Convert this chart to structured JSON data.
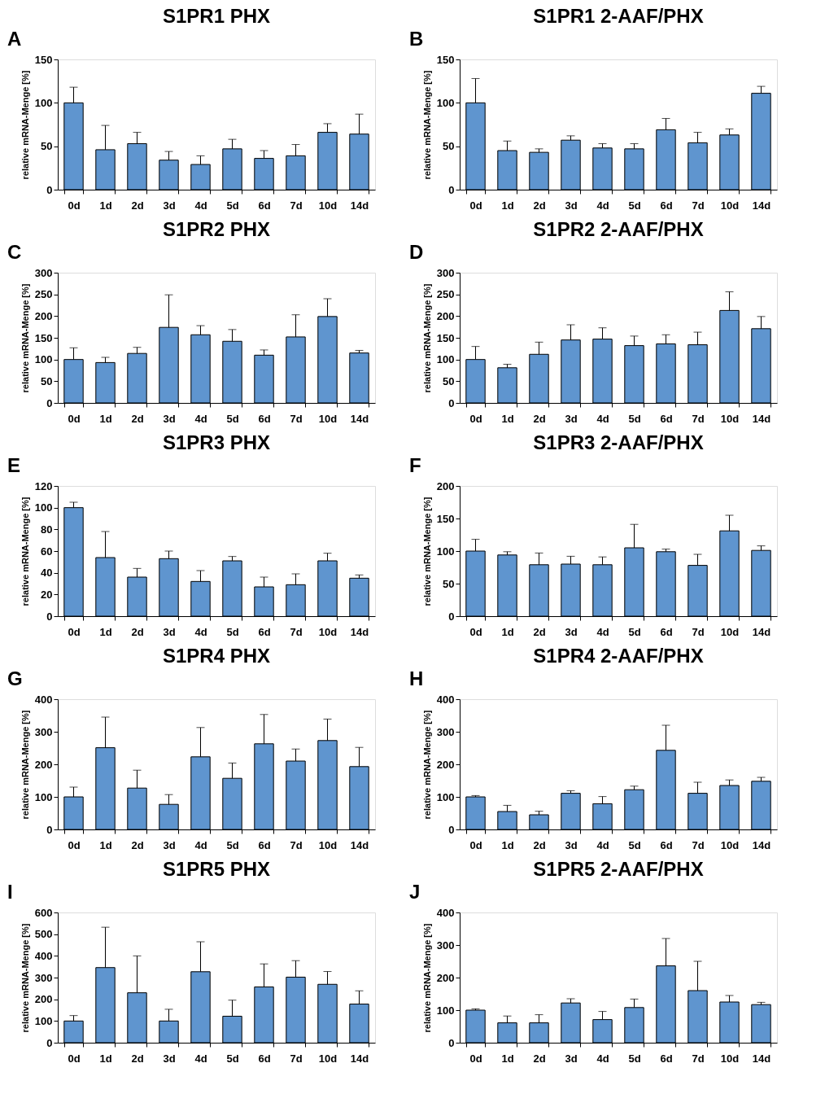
{
  "chart_data": [
    {
      "type": "bar",
      "title": "S1PR1 PHX",
      "ylabel": "relative mRNA-Menge [%]",
      "annotations": [
        "A"
      ],
      "color": "#5f95cf",
      "categories": [
        "0d",
        "1d",
        "2d",
        "3d",
        "4d",
        "5d",
        "6d",
        "7d",
        "10d",
        "14d"
      ],
      "values": [
        100,
        46,
        53,
        34,
        29,
        47,
        36,
        39,
        66,
        64
      ],
      "errors": [
        [
          100,
          118
        ],
        [
          46,
          74
        ],
        [
          53,
          66
        ],
        [
          34,
          44
        ],
        [
          29,
          39
        ],
        [
          47,
          58
        ],
        [
          36,
          45
        ],
        [
          39,
          52
        ],
        [
          66,
          76
        ],
        [
          64,
          87
        ]
      ],
      "ylim": [
        0,
        150
      ],
      "yticks": [
        0,
        50,
        100,
        150
      ]
    },
    {
      "type": "bar",
      "title": "S1PR1 2-AAF/PHX",
      "ylabel": "relative mRNA-Menge [%]",
      "annotations": [
        "B"
      ],
      "color": "#5f95cf",
      "categories": [
        "0d",
        "1d",
        "2d",
        "3d",
        "4d",
        "5d",
        "6d",
        "7d",
        "10d",
        "14d"
      ],
      "values": [
        100,
        45,
        43,
        57,
        48,
        47,
        69,
        54,
        63,
        111
      ],
      "errors": [
        [
          100,
          128
        ],
        [
          45,
          56
        ],
        [
          43,
          47
        ],
        [
          57,
          62
        ],
        [
          48,
          53
        ],
        [
          47,
          53
        ],
        [
          69,
          82
        ],
        [
          54,
          66
        ],
        [
          63,
          70
        ],
        [
          111,
          119
        ]
      ],
      "ylim": [
        0,
        150
      ],
      "yticks": [
        0,
        50,
        100,
        150
      ]
    },
    {
      "type": "bar",
      "title": "S1PR2 PHX",
      "ylabel": "relative mRNA-Menge [%]",
      "annotations": [
        "C"
      ],
      "color": "#5f95cf",
      "categories": [
        "0d",
        "1d",
        "2d",
        "3d",
        "4d",
        "5d",
        "6d",
        "7d",
        "10d",
        "14d"
      ],
      "values": [
        100,
        93,
        114,
        174,
        157,
        142,
        110,
        152,
        199,
        115
      ],
      "errors": [
        [
          100,
          127
        ],
        [
          93,
          105
        ],
        [
          114,
          128
        ],
        [
          174,
          249
        ],
        [
          157,
          178
        ],
        [
          142,
          169
        ],
        [
          110,
          122
        ],
        [
          152,
          203
        ],
        [
          199,
          240
        ],
        [
          115,
          121
        ]
      ],
      "ylim": [
        0,
        300
      ],
      "yticks": [
        0,
        50,
        100,
        150,
        200,
        250,
        300
      ]
    },
    {
      "type": "bar",
      "title": "S1PR2 2-AAF/PHX",
      "ylabel": "relative mRNA-Menge [%]",
      "annotations": [
        "D"
      ],
      "color": "#5f95cf",
      "categories": [
        "0d",
        "1d",
        "2d",
        "3d",
        "4d",
        "5d",
        "6d",
        "7d",
        "10d",
        "14d"
      ],
      "values": [
        100,
        81,
        112,
        145,
        147,
        132,
        136,
        134,
        213,
        171
      ],
      "errors": [
        [
          100,
          130
        ],
        [
          81,
          89
        ],
        [
          112,
          140
        ],
        [
          145,
          180
        ],
        [
          147,
          173
        ],
        [
          132,
          154
        ],
        [
          136,
          157
        ],
        [
          134,
          163
        ],
        [
          213,
          256
        ],
        [
          171,
          199
        ]
      ],
      "ylim": [
        0,
        300
      ],
      "yticks": [
        0,
        50,
        100,
        150,
        200,
        250,
        300
      ]
    },
    {
      "type": "bar",
      "title": "S1PR3 PHX",
      "ylabel": "relative mRNA-Menge [%]",
      "annotations": [
        "E"
      ],
      "color": "#5f95cf",
      "categories": [
        "0d",
        "1d",
        "2d",
        "3d",
        "4d",
        "5d",
        "6d",
        "7d",
        "10d",
        "14d"
      ],
      "values": [
        100,
        54,
        36,
        53,
        32,
        51,
        27,
        29,
        51,
        35
      ],
      "errors": [
        [
          100,
          105
        ],
        [
          54,
          78
        ],
        [
          36,
          44
        ],
        [
          53,
          60
        ],
        [
          32,
          42
        ],
        [
          51,
          55
        ],
        [
          27,
          36
        ],
        [
          29,
          39
        ],
        [
          51,
          58
        ],
        [
          35,
          38
        ]
      ],
      "ylim": [
        0,
        120
      ],
      "yticks": [
        0,
        20,
        40,
        60,
        80,
        100,
        120
      ]
    },
    {
      "type": "bar",
      "title": "S1PR3 2-AAF/PHX",
      "ylabel": "relative mRNA-Menge [%]",
      "annotations": [
        "F"
      ],
      "color": "#5f95cf",
      "categories": [
        "0d",
        "1d",
        "2d",
        "3d",
        "4d",
        "5d",
        "6d",
        "7d",
        "10d",
        "14d"
      ],
      "values": [
        100,
        94,
        79,
        80,
        79,
        105,
        99,
        78,
        131,
        101
      ],
      "errors": [
        [
          100,
          118
        ],
        [
          94,
          99
        ],
        [
          79,
          97
        ],
        [
          80,
          92
        ],
        [
          79,
          91
        ],
        [
          105,
          141
        ],
        [
          99,
          103
        ],
        [
          78,
          95
        ],
        [
          131,
          155
        ],
        [
          101,
          108
        ]
      ],
      "ylim": [
        0,
        200
      ],
      "yticks": [
        0,
        50,
        100,
        150,
        200
      ]
    },
    {
      "type": "bar",
      "title": "S1PR4 PHX",
      "ylabel": "relative mRNA-Menge [%]",
      "annotations": [
        "G"
      ],
      "color": "#5f95cf",
      "categories": [
        "0d",
        "1d",
        "2d",
        "3d",
        "4d",
        "5d",
        "6d",
        "7d",
        "10d",
        "14d"
      ],
      "values": [
        100,
        251,
        127,
        77,
        223,
        157,
        263,
        210,
        273,
        193
      ],
      "errors": [
        [
          100,
          130
        ],
        [
          251,
          345
        ],
        [
          127,
          182
        ],
        [
          77,
          107
        ],
        [
          223,
          313
        ],
        [
          157,
          204
        ],
        [
          263,
          353
        ],
        [
          210,
          247
        ],
        [
          273,
          339
        ],
        [
          193,
          252
        ]
      ],
      "ylim": [
        0,
        400
      ],
      "yticks": [
        0,
        100,
        200,
        300,
        400
      ]
    },
    {
      "type": "bar",
      "title": "S1PR4 2-AAF/PHX",
      "ylabel": "relative mRNA-Menge [%]",
      "annotations": [
        "H"
      ],
      "color": "#5f95cf",
      "categories": [
        "0d",
        "1d",
        "2d",
        "3d",
        "4d",
        "5d",
        "6d",
        "7d",
        "10d",
        "14d"
      ],
      "values": [
        100,
        55,
        45,
        111,
        79,
        122,
        243,
        111,
        135,
        148
      ],
      "errors": [
        [
          100,
          104
        ],
        [
          55,
          74
        ],
        [
          45,
          56
        ],
        [
          111,
          119
        ],
        [
          79,
          101
        ],
        [
          122,
          133
        ],
        [
          243,
          320
        ],
        [
          111,
          145
        ],
        [
          135,
          152
        ],
        [
          148,
          160
        ]
      ],
      "ylim": [
        0,
        400
      ],
      "yticks": [
        0,
        100,
        200,
        300,
        400
      ]
    },
    {
      "type": "bar",
      "title": "S1PR5 PHX",
      "ylabel": "relative mRNA-Menge [%]",
      "annotations": [
        "I"
      ],
      "color": "#5f95cf",
      "categories": [
        "0d",
        "1d",
        "2d",
        "3d",
        "4d",
        "5d",
        "6d",
        "7d",
        "10d",
        "14d"
      ],
      "values": [
        100,
        346,
        230,
        100,
        327,
        122,
        257,
        302,
        269,
        178
      ],
      "errors": [
        [
          100,
          125
        ],
        [
          346,
          532
        ],
        [
          230,
          400
        ],
        [
          100,
          154
        ],
        [
          327,
          465
        ],
        [
          122,
          196
        ],
        [
          257,
          363
        ],
        [
          302,
          378
        ],
        [
          269,
          328
        ],
        [
          178,
          239
        ]
      ],
      "ylim": [
        0,
        600
      ],
      "yticks": [
        0,
        100,
        200,
        300,
        400,
        500,
        600
      ]
    },
    {
      "type": "bar",
      "title": "S1PR5 2-AAF/PHX",
      "ylabel": "relative mRNA-Menge [%]",
      "annotations": [
        "J"
      ],
      "color": "#5f95cf",
      "categories": [
        "0d",
        "1d",
        "2d",
        "3d",
        "4d",
        "5d",
        "6d",
        "7d",
        "10d",
        "14d"
      ],
      "values": [
        100,
        61,
        61,
        122,
        71,
        108,
        236,
        160,
        125,
        117
      ],
      "errors": [
        [
          100,
          104
        ],
        [
          61,
          82
        ],
        [
          61,
          86
        ],
        [
          122,
          135
        ],
        [
          71,
          96
        ],
        [
          108,
          134
        ],
        [
          236,
          320
        ],
        [
          160,
          250
        ],
        [
          125,
          145
        ],
        [
          117,
          124
        ]
      ],
      "ylim": [
        0,
        400
      ],
      "yticks": [
        0,
        100,
        200,
        300,
        400
      ]
    }
  ]
}
